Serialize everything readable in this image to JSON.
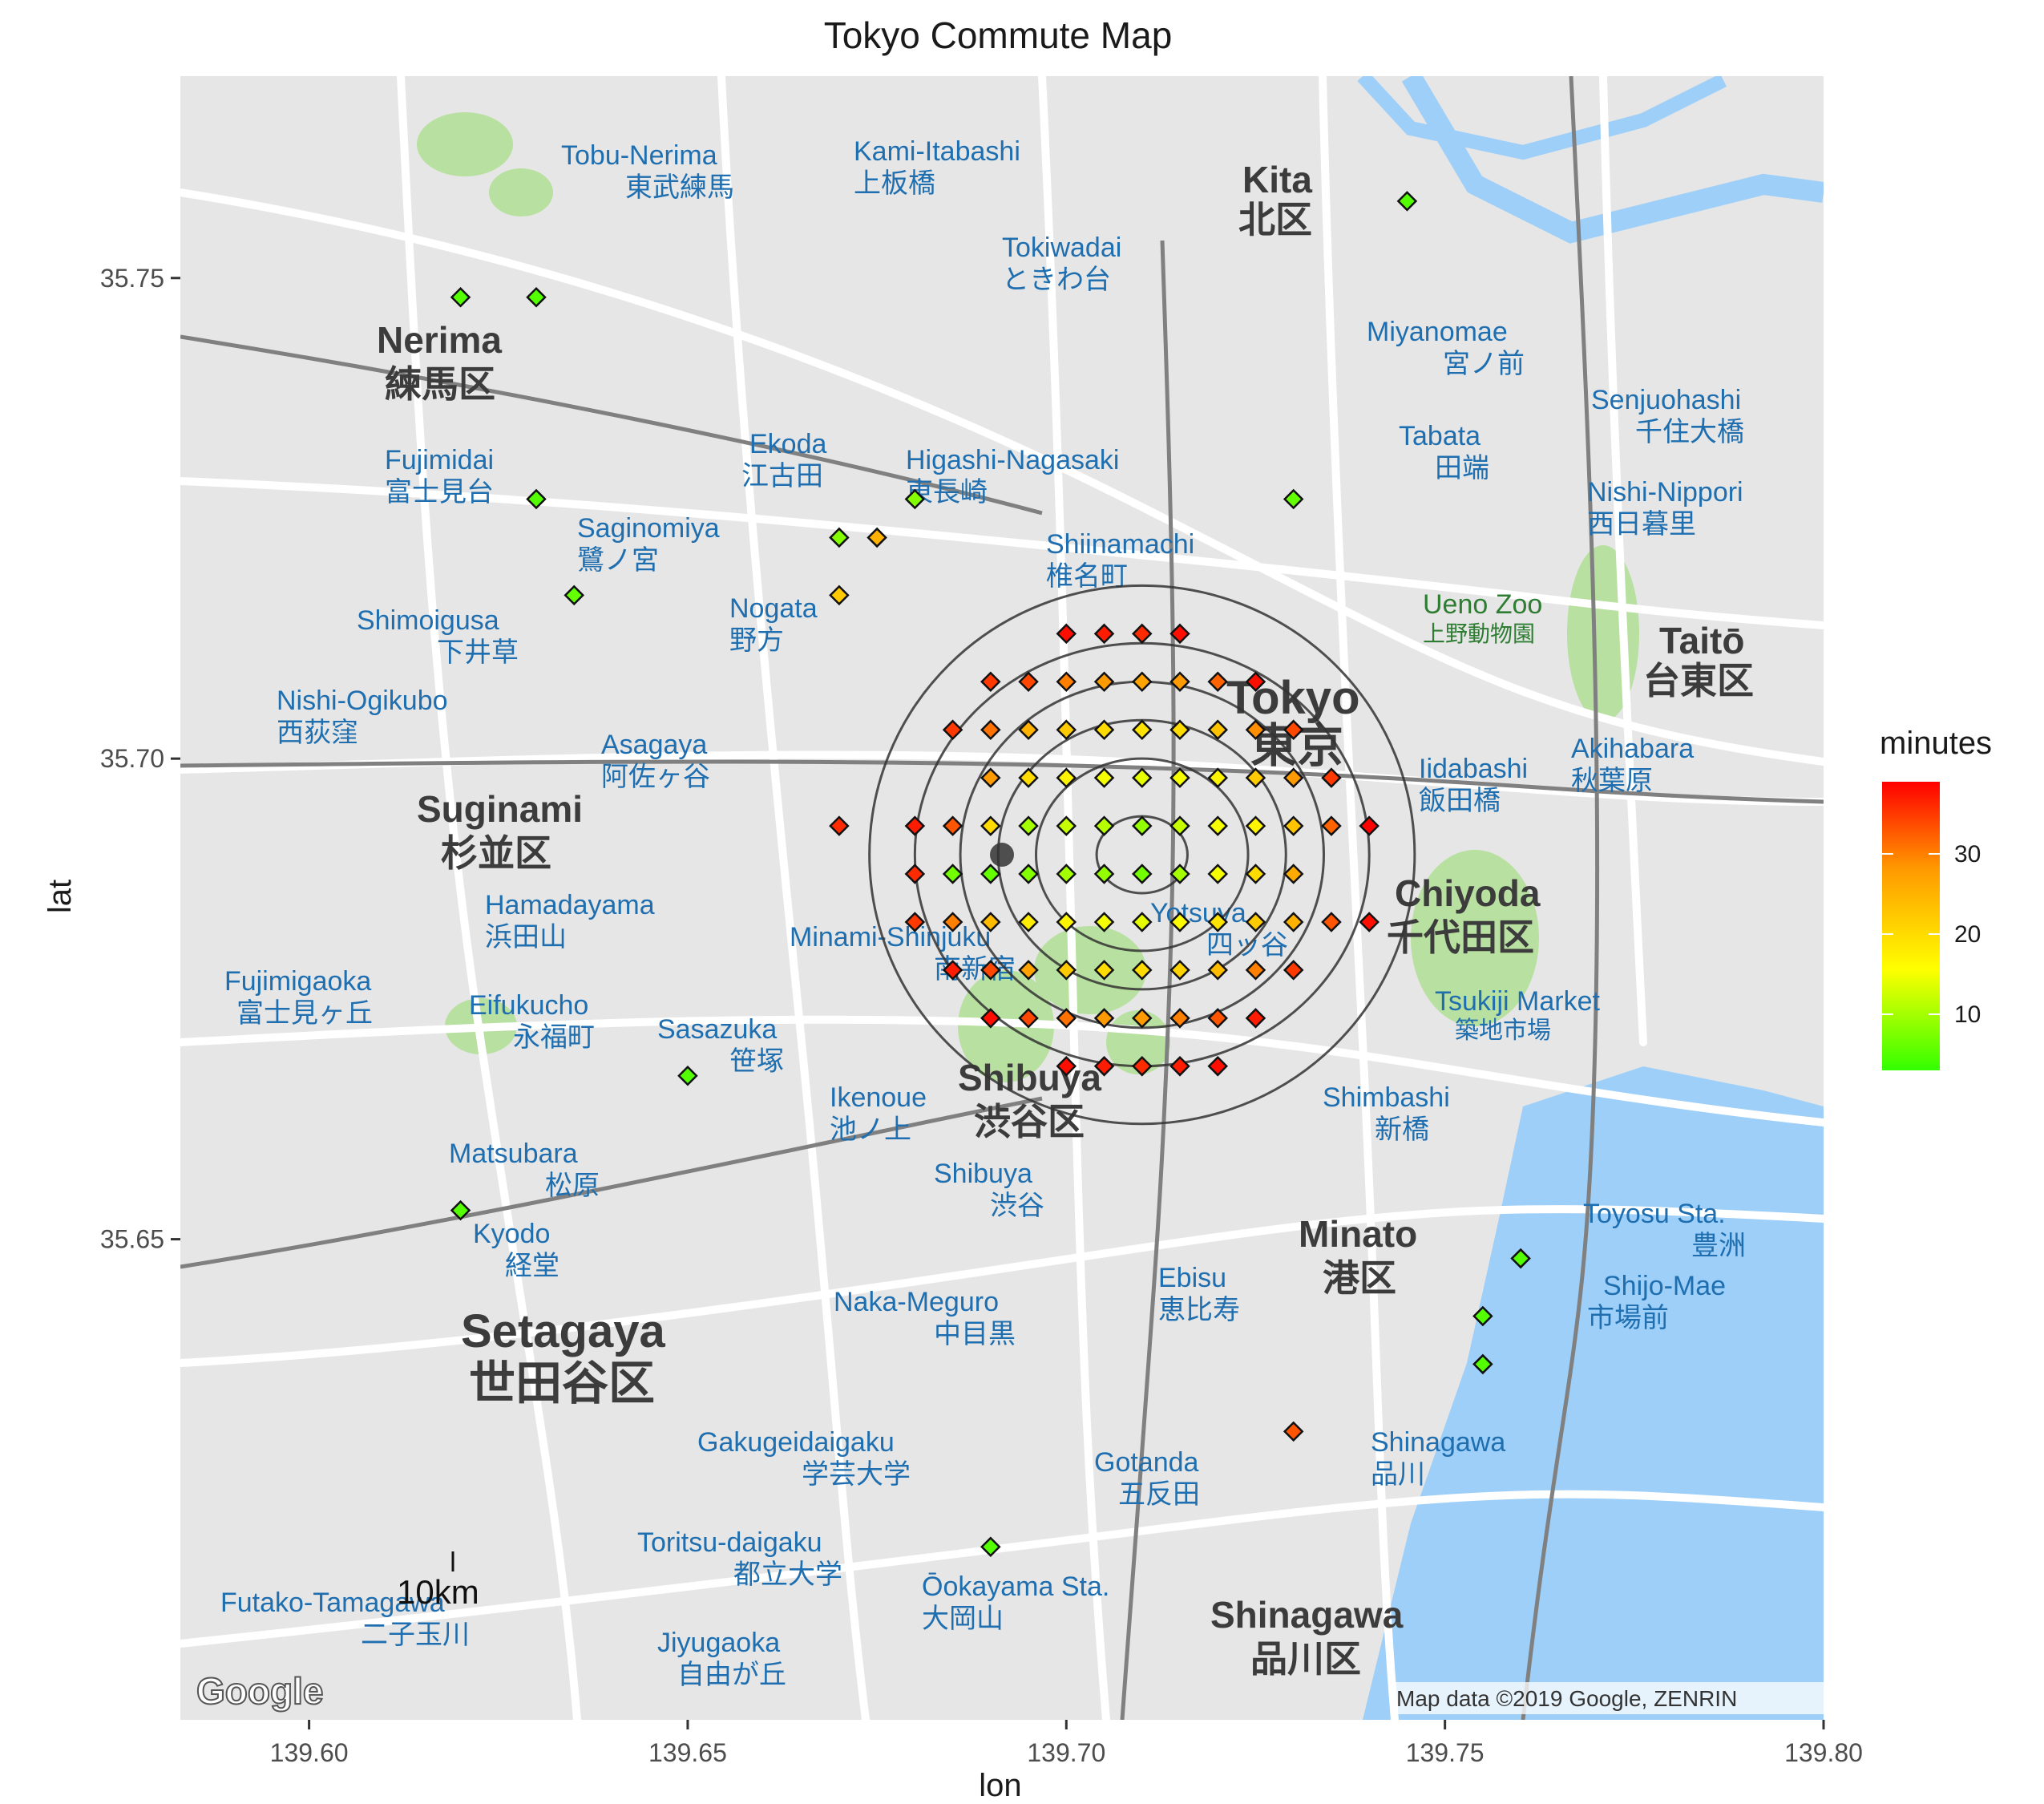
{
  "title": "Tokyo Commute Map",
  "axes": {
    "xlabel": "lon",
    "ylabel": "lat",
    "xlim": [
      139.583,
      139.8
    ],
    "ylim": [
      35.6,
      35.771
    ],
    "xticks": [
      "139.60",
      "139.65",
      "139.70",
      "139.75",
      "139.80"
    ],
    "yticks": [
      "35.65",
      "35.70",
      "35.75"
    ]
  },
  "legend": {
    "title": "minutes",
    "ticks": [
      "10",
      "20",
      "30"
    ],
    "colors": [
      "#33ff00",
      "#ffff00",
      "#ff9900",
      "#ff0000"
    ]
  },
  "map_colors": {
    "background": "#e6e6e6",
    "water": "#9dcff8",
    "park": "#b8e0a0",
    "road": "#ffffff",
    "rail": "#808080",
    "label_blue": "#1f6fb0"
  },
  "map_labels": {
    "wards": [
      {
        "en": "Nerima",
        "jp": "練馬区"
      },
      {
        "en": "Suginami",
        "jp": "杉並区"
      },
      {
        "en": "Setagaya",
        "jp": "世田谷区"
      },
      {
        "en": "Shibuya",
        "jp": "渋谷区"
      },
      {
        "en": "Tokyo",
        "jp": "東京"
      },
      {
        "en": "Chiyoda",
        "jp": "千代田区"
      },
      {
        "en": "Minato",
        "jp": "港区"
      },
      {
        "en": "Shinagawa",
        "jp": "品川区"
      },
      {
        "en": "Kita",
        "jp": "北区"
      },
      {
        "en": "Taitō",
        "jp": "台東区"
      }
    ],
    "places": [
      {
        "en": "Tobu-Nerima",
        "jp": "東武練馬"
      },
      {
        "en": "Kami-Itabashi",
        "jp": "上板橋"
      },
      {
        "en": "Tokiwadai",
        "jp": "ときわ台"
      },
      {
        "en": "Miyanomae",
        "jp": "宮ノ前"
      },
      {
        "en": "Tabata",
        "jp": "田端"
      },
      {
        "en": "Nishi-Nippori",
        "jp": "西日暮里"
      },
      {
        "en": "Senjuohashi",
        "jp": "千住大橋"
      },
      {
        "en": "Fujimidai",
        "jp": "富士見台"
      },
      {
        "en": "Ekoda",
        "jp": "江古田"
      },
      {
        "en": "Higashi-Nagasaki",
        "jp": "東長崎"
      },
      {
        "en": "Saginomiya",
        "jp": "鷺ノ宮"
      },
      {
        "en": "Shiinamachi",
        "jp": "椎名町"
      },
      {
        "en": "Ueno Zoo",
        "jp": "上野動物園"
      },
      {
        "en": "Shimoigusa",
        "jp": "下井草"
      },
      {
        "en": "Nogata",
        "jp": "野方"
      },
      {
        "en": "Nishi-Ogikubo",
        "jp": "西荻窪"
      },
      {
        "en": "Asagaya",
        "jp": "阿佐ヶ谷"
      },
      {
        "en": "Iidabashi",
        "jp": "飯田橋"
      },
      {
        "en": "Akihabara",
        "jp": "秋葉原"
      },
      {
        "en": "Hamadayama",
        "jp": "浜田山"
      },
      {
        "en": "Minami-Shinjuku",
        "jp": "南新宿"
      },
      {
        "en": "Yotsuya",
        "jp": "四ッ谷"
      },
      {
        "en": "Fujimigaoka",
        "jp": "富士見ヶ丘"
      },
      {
        "en": "Eifukucho",
        "jp": "永福町"
      },
      {
        "en": "Sasazuka",
        "jp": "笹塚"
      },
      {
        "en": "Tsukiji Market",
        "jp": "築地市場"
      },
      {
        "en": "Ikenoue",
        "jp": "池ノ上"
      },
      {
        "en": "Shimbashi",
        "jp": "新橋"
      },
      {
        "en": "Matsubara",
        "jp": "松原"
      },
      {
        "en": "Shibuya",
        "jp": "渋谷"
      },
      {
        "en": "Toyosu Sta.",
        "jp": "豊洲"
      },
      {
        "en": "Kyodo",
        "jp": "経堂"
      },
      {
        "en": "Naka-Meguro",
        "jp": "中目黒"
      },
      {
        "en": "Ebisu",
        "jp": "恵比寿"
      },
      {
        "en": "Shijo-Mae",
        "jp": "市場前"
      },
      {
        "en": "Gakugeidaigaku",
        "jp": "学芸大学"
      },
      {
        "en": "Gotanda",
        "jp": "五反田"
      },
      {
        "en": "Shinagawa",
        "jp": "品川"
      },
      {
        "en": "Toritsu-daigaku",
        "jp": "都立大学"
      },
      {
        "en": "Ōokayama Sta.",
        "jp": "大岡山"
      },
      {
        "en": "Futako-Tamagawa",
        "jp": "二子玉川"
      },
      {
        "en": "Jiyugaoka",
        "jp": "自由が丘"
      }
    ]
  },
  "scalebar": "10km",
  "google_logo": "Google",
  "credit": "Map data ©2019 Google, ZENRIN",
  "chart_data": {
    "type": "scatter",
    "title": "Tokyo Commute Map",
    "xlabel": "lon",
    "ylabel": "lat",
    "xlim": [
      139.583,
      139.8
    ],
    "ylim": [
      35.6,
      35.771
    ],
    "color_variable": "minutes",
    "color_range": [
      3,
      39
    ],
    "origin": {
      "lon": 139.6915,
      "lat": 35.69
    },
    "contour_center": {
      "lon": 139.71,
      "lat": 35.69
    },
    "contour_radii_lon_lat": [
      [
        0.006,
        0.004
      ],
      [
        0.014,
        0.01
      ],
      [
        0.019,
        0.014
      ],
      [
        0.024,
        0.018
      ],
      [
        0.03,
        0.022
      ],
      [
        0.036,
        0.028
      ]
    ],
    "points": [
      {
        "lon": 139.745,
        "lat": 35.758,
        "minutes": 5
      },
      {
        "lon": 139.62,
        "lat": 35.748,
        "minutes": 5
      },
      {
        "lon": 139.63,
        "lat": 35.748,
        "minutes": 5
      },
      {
        "lon": 139.63,
        "lat": 35.727,
        "minutes": 5
      },
      {
        "lon": 139.635,
        "lat": 35.717,
        "minutes": 6
      },
      {
        "lon": 139.68,
        "lat": 35.727,
        "minutes": 8
      },
      {
        "lon": 139.67,
        "lat": 35.723,
        "minutes": 8
      },
      {
        "lon": 139.675,
        "lat": 35.723,
        "minutes": 25
      },
      {
        "lon": 139.67,
        "lat": 35.717,
        "minutes": 22
      },
      {
        "lon": 139.73,
        "lat": 35.727,
        "minutes": 6
      },
      {
        "lon": 139.65,
        "lat": 35.667,
        "minutes": 5
      },
      {
        "lon": 139.62,
        "lat": 35.653,
        "minutes": 5
      },
      {
        "lon": 139.76,
        "lat": 35.648,
        "minutes": 5
      },
      {
        "lon": 139.755,
        "lat": 35.642,
        "minutes": 5
      },
      {
        "lon": 139.755,
        "lat": 35.637,
        "minutes": 5
      },
      {
        "lon": 139.73,
        "lat": 35.63,
        "minutes": 33
      },
      {
        "lon": 139.69,
        "lat": 35.618,
        "minutes": 5
      },
      {
        "lon": 139.7,
        "lat": 35.713,
        "minutes": 38
      },
      {
        "lon": 139.705,
        "lat": 35.713,
        "minutes": 37
      },
      {
        "lon": 139.71,
        "lat": 35.713,
        "minutes": 36
      },
      {
        "lon": 139.715,
        "lat": 35.713,
        "minutes": 38
      },
      {
        "lon": 139.69,
        "lat": 35.708,
        "minutes": 35
      },
      {
        "lon": 139.695,
        "lat": 35.708,
        "minutes": 34
      },
      {
        "lon": 139.7,
        "lat": 35.708,
        "minutes": 30
      },
      {
        "lon": 139.705,
        "lat": 35.708,
        "minutes": 28
      },
      {
        "lon": 139.71,
        "lat": 35.708,
        "minutes": 27
      },
      {
        "lon": 139.715,
        "lat": 35.708,
        "minutes": 28
      },
      {
        "lon": 139.72,
        "lat": 35.708,
        "minutes": 32
      },
      {
        "lon": 139.725,
        "lat": 35.708,
        "minutes": 38
      },
      {
        "lon": 139.685,
        "lat": 35.703,
        "minutes": 35
      },
      {
        "lon": 139.69,
        "lat": 35.703,
        "minutes": 31
      },
      {
        "lon": 139.695,
        "lat": 35.703,
        "minutes": 25
      },
      {
        "lon": 139.7,
        "lat": 35.703,
        "minutes": 22
      },
      {
        "lon": 139.705,
        "lat": 35.703,
        "minutes": 20
      },
      {
        "lon": 139.71,
        "lat": 35.703,
        "minutes": 19
      },
      {
        "lon": 139.715,
        "lat": 35.703,
        "minutes": 20
      },
      {
        "lon": 139.72,
        "lat": 35.703,
        "minutes": 23
      },
      {
        "lon": 139.725,
        "lat": 35.703,
        "minutes": 29
      },
      {
        "lon": 139.73,
        "lat": 35.703,
        "minutes": 34
      },
      {
        "lon": 139.69,
        "lat": 35.698,
        "minutes": 28
      },
      {
        "lon": 139.695,
        "lat": 35.698,
        "minutes": 20
      },
      {
        "lon": 139.7,
        "lat": 35.698,
        "minutes": 17
      },
      {
        "lon": 139.705,
        "lat": 35.698,
        "minutes": 15
      },
      {
        "lon": 139.71,
        "lat": 35.698,
        "minutes": 14
      },
      {
        "lon": 139.715,
        "lat": 35.698,
        "minutes": 15
      },
      {
        "lon": 139.72,
        "lat": 35.698,
        "minutes": 17
      },
      {
        "lon": 139.725,
        "lat": 35.698,
        "minutes": 22
      },
      {
        "lon": 139.73,
        "lat": 35.698,
        "minutes": 28
      },
      {
        "lon": 139.735,
        "lat": 35.698,
        "minutes": 35
      },
      {
        "lon": 139.67,
        "lat": 35.693,
        "minutes": 36
      },
      {
        "lon": 139.68,
        "lat": 35.693,
        "minutes": 37
      },
      {
        "lon": 139.685,
        "lat": 35.693,
        "minutes": 33
      },
      {
        "lon": 139.69,
        "lat": 35.693,
        "minutes": 20
      },
      {
        "lon": 139.695,
        "lat": 35.693,
        "minutes": 10
      },
      {
        "lon": 139.7,
        "lat": 35.693,
        "minutes": 12
      },
      {
        "lon": 139.705,
        "lat": 35.693,
        "minutes": 11
      },
      {
        "lon": 139.71,
        "lat": 35.693,
        "minutes": 9
      },
      {
        "lon": 139.715,
        "lat": 35.693,
        "minutes": 12
      },
      {
        "lon": 139.72,
        "lat": 35.693,
        "minutes": 15
      },
      {
        "lon": 139.725,
        "lat": 35.693,
        "minutes": 17
      },
      {
        "lon": 139.73,
        "lat": 35.693,
        "minutes": 23
      },
      {
        "lon": 139.735,
        "lat": 35.693,
        "minutes": 32
      },
      {
        "lon": 139.74,
        "lat": 35.693,
        "minutes": 39
      },
      {
        "lon": 139.68,
        "lat": 35.688,
        "minutes": 36
      },
      {
        "lon": 139.685,
        "lat": 35.688,
        "minutes": 7
      },
      {
        "lon": 139.69,
        "lat": 35.688,
        "minutes": 6
      },
      {
        "lon": 139.695,
        "lat": 35.688,
        "minutes": 8
      },
      {
        "lon": 139.7,
        "lat": 35.688,
        "minutes": 10
      },
      {
        "lon": 139.705,
        "lat": 35.688,
        "minutes": 9
      },
      {
        "lon": 139.71,
        "lat": 35.688,
        "minutes": 7
      },
      {
        "lon": 139.715,
        "lat": 35.688,
        "minutes": 10
      },
      {
        "lon": 139.72,
        "lat": 35.688,
        "minutes": 15
      },
      {
        "lon": 139.725,
        "lat": 35.688,
        "minutes": 20
      },
      {
        "lon": 139.73,
        "lat": 35.688,
        "minutes": 26
      },
      {
        "lon": 139.68,
        "lat": 35.683,
        "minutes": 35
      },
      {
        "lon": 139.685,
        "lat": 35.683,
        "minutes": 30
      },
      {
        "lon": 139.69,
        "lat": 35.683,
        "minutes": 24
      },
      {
        "lon": 139.695,
        "lat": 35.683,
        "minutes": 18
      },
      {
        "lon": 139.7,
        "lat": 35.683,
        "minutes": 17
      },
      {
        "lon": 139.705,
        "lat": 35.683,
        "minutes": 15
      },
      {
        "lon": 139.71,
        "lat": 35.683,
        "minutes": 14
      },
      {
        "lon": 139.715,
        "lat": 35.683,
        "minutes": 16
      },
      {
        "lon": 139.72,
        "lat": 35.683,
        "minutes": 19
      },
      {
        "lon": 139.725,
        "lat": 35.683,
        "minutes": 22
      },
      {
        "lon": 139.73,
        "lat": 35.683,
        "minutes": 25
      },
      {
        "lon": 139.735,
        "lat": 35.683,
        "minutes": 33
      },
      {
        "lon": 139.74,
        "lat": 35.683,
        "minutes": 38
      },
      {
        "lon": 139.685,
        "lat": 35.678,
        "minutes": 37
      },
      {
        "lon": 139.69,
        "lat": 35.678,
        "minutes": 34
      },
      {
        "lon": 139.695,
        "lat": 35.678,
        "minutes": 27
      },
      {
        "lon": 139.7,
        "lat": 35.678,
        "minutes": 22
      },
      {
        "lon": 139.705,
        "lat": 35.678,
        "minutes": 20
      },
      {
        "lon": 139.71,
        "lat": 35.678,
        "minutes": 20
      },
      {
        "lon": 139.715,
        "lat": 35.678,
        "minutes": 21
      },
      {
        "lon": 139.72,
        "lat": 35.678,
        "minutes": 24
      },
      {
        "lon": 139.725,
        "lat": 35.678,
        "minutes": 30
      },
      {
        "lon": 139.73,
        "lat": 35.678,
        "minutes": 35
      },
      {
        "lon": 139.69,
        "lat": 35.673,
        "minutes": 38
      },
      {
        "lon": 139.695,
        "lat": 35.673,
        "minutes": 34
      },
      {
        "lon": 139.7,
        "lat": 35.673,
        "minutes": 31
      },
      {
        "lon": 139.705,
        "lat": 35.673,
        "minutes": 28
      },
      {
        "lon": 139.71,
        "lat": 35.673,
        "minutes": 28
      },
      {
        "lon": 139.715,
        "lat": 35.673,
        "minutes": 30
      },
      {
        "lon": 139.72,
        "lat": 35.673,
        "minutes": 33
      },
      {
        "lon": 139.725,
        "lat": 35.673,
        "minutes": 37
      },
      {
        "lon": 139.7,
        "lat": 35.668,
        "minutes": 38
      },
      {
        "lon": 139.705,
        "lat": 35.668,
        "minutes": 37
      },
      {
        "lon": 139.71,
        "lat": 35.668,
        "minutes": 36
      },
      {
        "lon": 139.715,
        "lat": 35.668,
        "minutes": 37
      },
      {
        "lon": 139.72,
        "lat": 35.668,
        "minutes": 38
      }
    ]
  }
}
